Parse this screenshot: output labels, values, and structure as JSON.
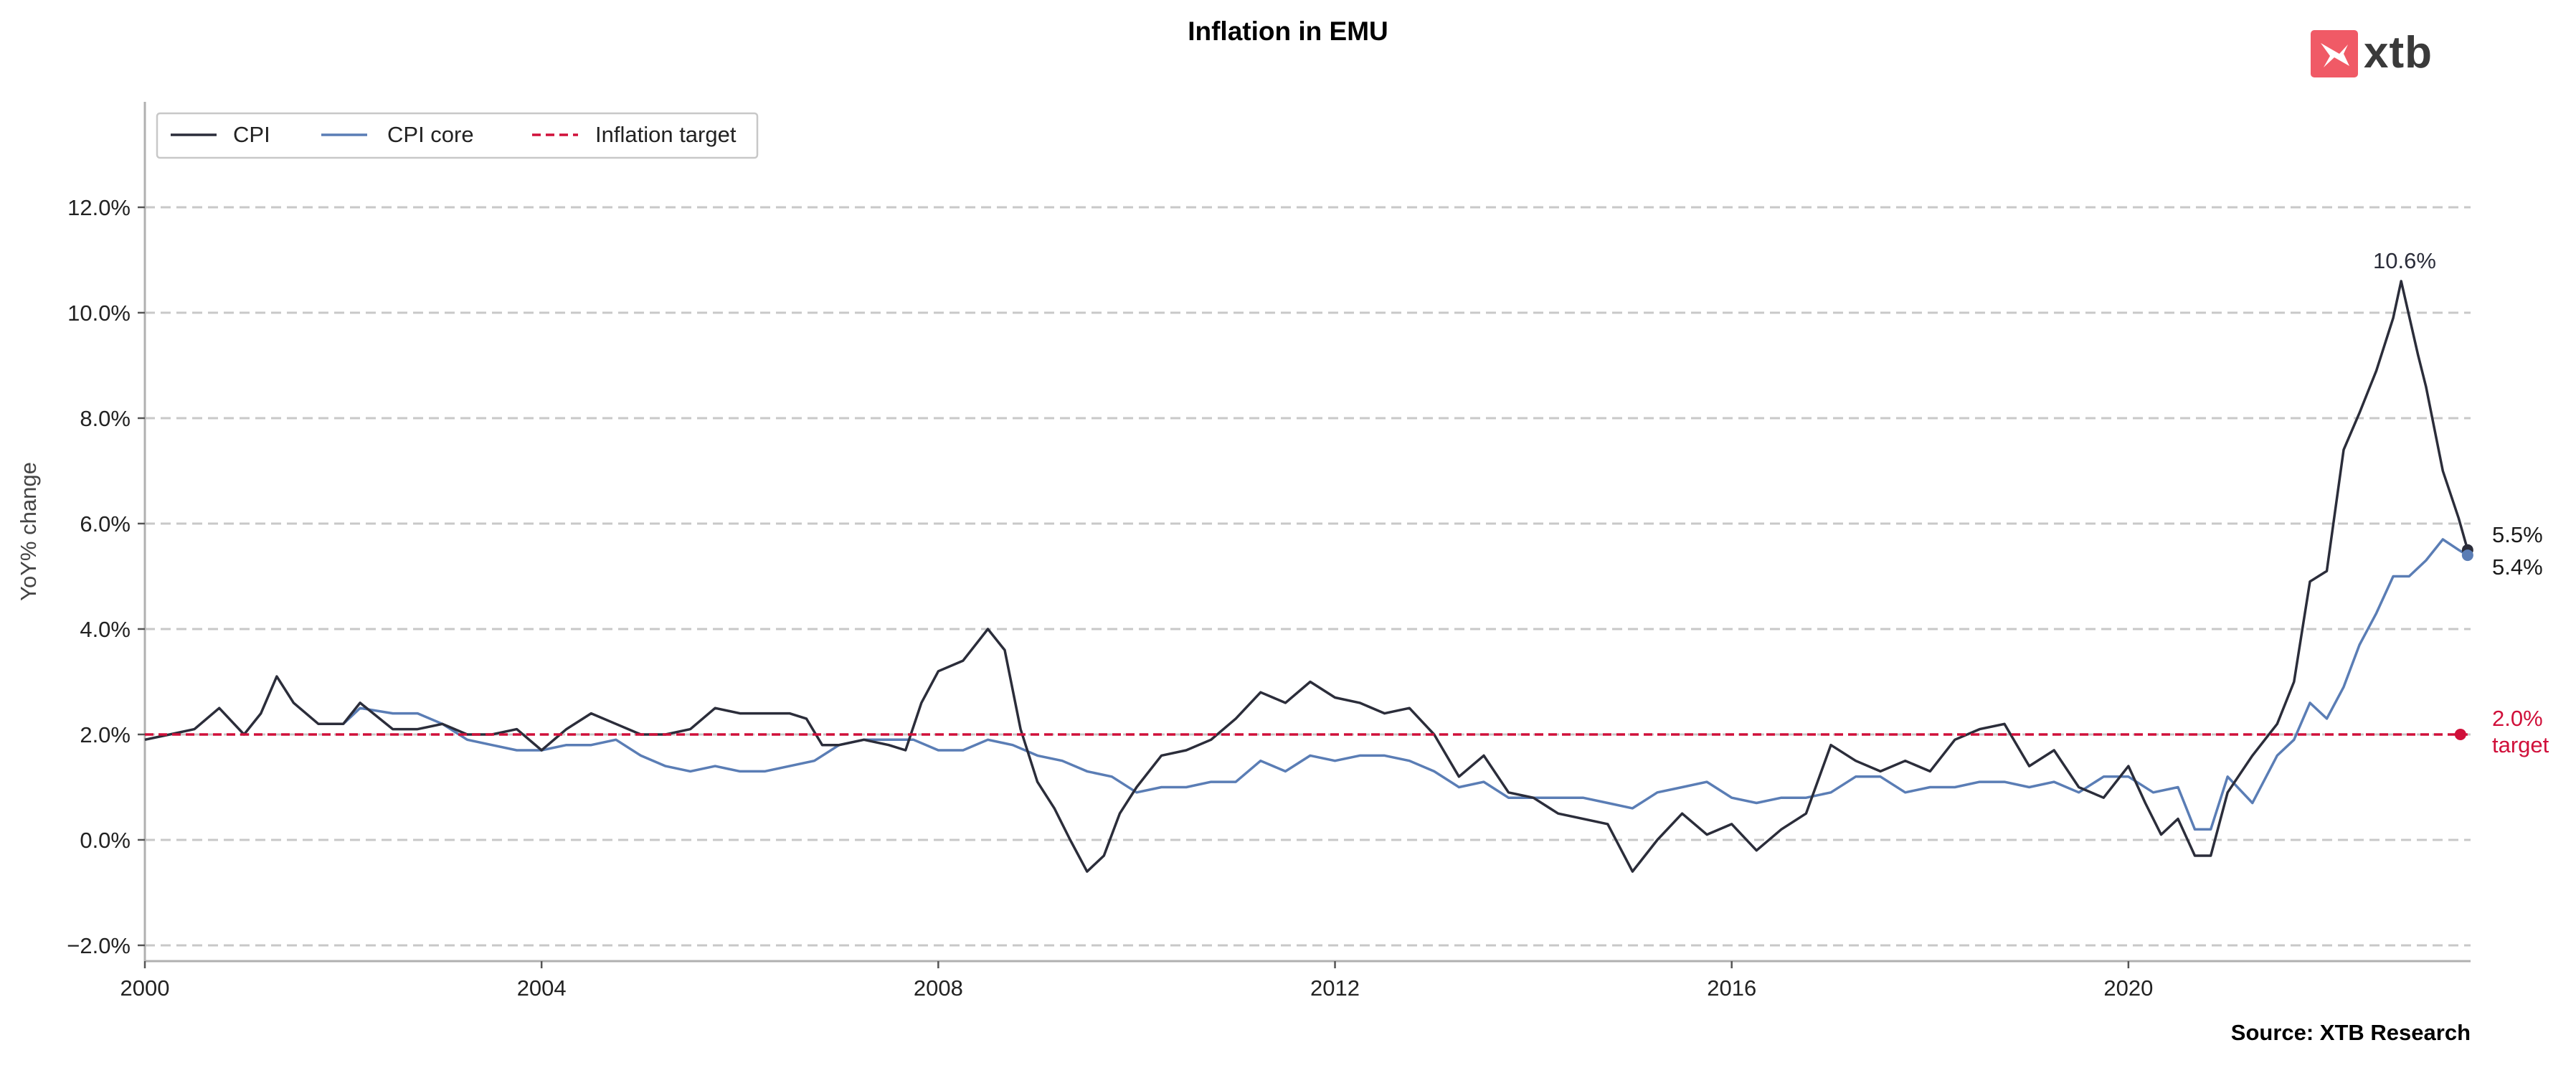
{
  "chart_data": {
    "type": "line",
    "title": "Inflation in EMU",
    "ylabel": "YoY% change",
    "xlabel": "",
    "source": "Source: XTB Research",
    "logo_text": "xtb",
    "ylim": [
      -2.3,
      14
    ],
    "xlim": [
      2000,
      2023.45
    ],
    "y_ticks": [
      -2,
      0,
      2,
      4,
      6,
      8,
      10,
      12
    ],
    "y_tick_labels": [
      "−2.0%",
      "0.0%",
      "2.0%",
      "4.0%",
      "6.0%",
      "8.0%",
      "10.0%",
      "12.0%"
    ],
    "x_ticks": [
      2000,
      2004,
      2008,
      2012,
      2016,
      2020
    ],
    "x_tick_labels": [
      "2000",
      "2004",
      "2008",
      "2012",
      "2016",
      "2020"
    ],
    "grid": "horizontal dashed",
    "legend_position": "top-left",
    "legend": [
      "CPI",
      "CPI core",
      "Inflation target"
    ],
    "peak_label": "10.6%",
    "end_labels": {
      "cpi": "5.5%",
      "core": "5.4%",
      "target_value": "2.0%",
      "target_word": "target"
    },
    "series": [
      {
        "name": "CPI",
        "color": "#2b2d3a",
        "points": [
          [
            2000.0,
            1.9
          ],
          [
            2000.25,
            2.0
          ],
          [
            2000.5,
            2.1
          ],
          [
            2000.75,
            2.5
          ],
          [
            2001.0,
            2.0
          ],
          [
            2001.17,
            2.4
          ],
          [
            2001.33,
            3.1
          ],
          [
            2001.5,
            2.6
          ],
          [
            2001.75,
            2.2
          ],
          [
            2002.0,
            2.2
          ],
          [
            2002.17,
            2.6
          ],
          [
            2002.5,
            2.1
          ],
          [
            2002.75,
            2.1
          ],
          [
            2003.0,
            2.2
          ],
          [
            2003.25,
            2.0
          ],
          [
            2003.5,
            2.0
          ],
          [
            2003.75,
            2.1
          ],
          [
            2004.0,
            1.7
          ],
          [
            2004.25,
            2.1
          ],
          [
            2004.5,
            2.4
          ],
          [
            2004.75,
            2.2
          ],
          [
            2005.0,
            2.0
          ],
          [
            2005.25,
            2.0
          ],
          [
            2005.5,
            2.1
          ],
          [
            2005.75,
            2.5
          ],
          [
            2006.0,
            2.4
          ],
          [
            2006.25,
            2.4
          ],
          [
            2006.5,
            2.4
          ],
          [
            2006.67,
            2.3
          ],
          [
            2006.83,
            1.8
          ],
          [
            2007.0,
            1.8
          ],
          [
            2007.25,
            1.9
          ],
          [
            2007.5,
            1.8
          ],
          [
            2007.67,
            1.7
          ],
          [
            2007.83,
            2.6
          ],
          [
            2008.0,
            3.2
          ],
          [
            2008.25,
            3.4
          ],
          [
            2008.5,
            4.0
          ],
          [
            2008.67,
            3.6
          ],
          [
            2008.83,
            2.1
          ],
          [
            2009.0,
            1.1
          ],
          [
            2009.17,
            0.6
          ],
          [
            2009.33,
            0.0
          ],
          [
            2009.5,
            -0.6
          ],
          [
            2009.67,
            -0.3
          ],
          [
            2009.83,
            0.5
          ],
          [
            2010.0,
            1.0
          ],
          [
            2010.25,
            1.6
          ],
          [
            2010.5,
            1.7
          ],
          [
            2010.75,
            1.9
          ],
          [
            2011.0,
            2.3
          ],
          [
            2011.25,
            2.8
          ],
          [
            2011.5,
            2.6
          ],
          [
            2011.75,
            3.0
          ],
          [
            2012.0,
            2.7
          ],
          [
            2012.25,
            2.6
          ],
          [
            2012.5,
            2.4
          ],
          [
            2012.75,
            2.5
          ],
          [
            2013.0,
            2.0
          ],
          [
            2013.25,
            1.2
          ],
          [
            2013.5,
            1.6
          ],
          [
            2013.75,
            0.9
          ],
          [
            2014.0,
            0.8
          ],
          [
            2014.25,
            0.5
          ],
          [
            2014.5,
            0.4
          ],
          [
            2014.75,
            0.3
          ],
          [
            2015.0,
            -0.6
          ],
          [
            2015.25,
            0.0
          ],
          [
            2015.5,
            0.5
          ],
          [
            2015.75,
            0.1
          ],
          [
            2016.0,
            0.3
          ],
          [
            2016.25,
            -0.2
          ],
          [
            2016.5,
            0.2
          ],
          [
            2016.75,
            0.5
          ],
          [
            2017.0,
            1.8
          ],
          [
            2017.25,
            1.5
          ],
          [
            2017.5,
            1.3
          ],
          [
            2017.75,
            1.5
          ],
          [
            2018.0,
            1.3
          ],
          [
            2018.25,
            1.9
          ],
          [
            2018.5,
            2.1
          ],
          [
            2018.75,
            2.2
          ],
          [
            2019.0,
            1.4
          ],
          [
            2019.25,
            1.7
          ],
          [
            2019.5,
            1.0
          ],
          [
            2019.75,
            0.8
          ],
          [
            2020.0,
            1.4
          ],
          [
            2020.17,
            0.7
          ],
          [
            2020.33,
            0.1
          ],
          [
            2020.5,
            0.4
          ],
          [
            2020.67,
            -0.3
          ],
          [
            2020.83,
            -0.3
          ],
          [
            2021.0,
            0.9
          ],
          [
            2021.25,
            1.6
          ],
          [
            2021.5,
            2.2
          ],
          [
            2021.67,
            3.0
          ],
          [
            2021.83,
            4.9
          ],
          [
            2022.0,
            5.1
          ],
          [
            2022.17,
            7.4
          ],
          [
            2022.33,
            8.1
          ],
          [
            2022.5,
            8.9
          ],
          [
            2022.67,
            9.9
          ],
          [
            2022.75,
            10.6
          ],
          [
            2022.92,
            9.2
          ],
          [
            2023.0,
            8.6
          ],
          [
            2023.17,
            7.0
          ],
          [
            2023.33,
            6.1
          ],
          [
            2023.42,
            5.5
          ]
        ]
      },
      {
        "name": "CPI core",
        "color": "#5a7db5",
        "points": [
          [
            2002.0,
            2.2
          ],
          [
            2002.17,
            2.5
          ],
          [
            2002.5,
            2.4
          ],
          [
            2002.75,
            2.4
          ],
          [
            2003.0,
            2.2
          ],
          [
            2003.25,
            1.9
          ],
          [
            2003.5,
            1.8
          ],
          [
            2003.75,
            1.7
          ],
          [
            2004.0,
            1.7
          ],
          [
            2004.25,
            1.8
          ],
          [
            2004.5,
            1.8
          ],
          [
            2004.75,
            1.9
          ],
          [
            2005.0,
            1.6
          ],
          [
            2005.25,
            1.4
          ],
          [
            2005.5,
            1.3
          ],
          [
            2005.75,
            1.4
          ],
          [
            2006.0,
            1.3
          ],
          [
            2006.25,
            1.3
          ],
          [
            2006.5,
            1.4
          ],
          [
            2006.75,
            1.5
          ],
          [
            2007.0,
            1.8
          ],
          [
            2007.25,
            1.9
          ],
          [
            2007.5,
            1.9
          ],
          [
            2007.75,
            1.9
          ],
          [
            2008.0,
            1.7
          ],
          [
            2008.25,
            1.7
          ],
          [
            2008.5,
            1.9
          ],
          [
            2008.75,
            1.8
          ],
          [
            2009.0,
            1.6
          ],
          [
            2009.25,
            1.5
          ],
          [
            2009.5,
            1.3
          ],
          [
            2009.75,
            1.2
          ],
          [
            2010.0,
            0.9
          ],
          [
            2010.25,
            1.0
          ],
          [
            2010.5,
            1.0
          ],
          [
            2010.75,
            1.1
          ],
          [
            2011.0,
            1.1
          ],
          [
            2011.25,
            1.5
          ],
          [
            2011.5,
            1.3
          ],
          [
            2011.75,
            1.6
          ],
          [
            2012.0,
            1.5
          ],
          [
            2012.25,
            1.6
          ],
          [
            2012.5,
            1.6
          ],
          [
            2012.75,
            1.5
          ],
          [
            2013.0,
            1.3
          ],
          [
            2013.25,
            1.0
          ],
          [
            2013.5,
            1.1
          ],
          [
            2013.75,
            0.8
          ],
          [
            2014.0,
            0.8
          ],
          [
            2014.25,
            0.8
          ],
          [
            2014.5,
            0.8
          ],
          [
            2014.75,
            0.7
          ],
          [
            2015.0,
            0.6
          ],
          [
            2015.25,
            0.9
          ],
          [
            2015.5,
            1.0
          ],
          [
            2015.75,
            1.1
          ],
          [
            2016.0,
            0.8
          ],
          [
            2016.25,
            0.7
          ],
          [
            2016.5,
            0.8
          ],
          [
            2016.75,
            0.8
          ],
          [
            2017.0,
            0.9
          ],
          [
            2017.25,
            1.2
          ],
          [
            2017.5,
            1.2
          ],
          [
            2017.75,
            0.9
          ],
          [
            2018.0,
            1.0
          ],
          [
            2018.25,
            1.0
          ],
          [
            2018.5,
            1.1
          ],
          [
            2018.75,
            1.1
          ],
          [
            2019.0,
            1.0
          ],
          [
            2019.25,
            1.1
          ],
          [
            2019.5,
            0.9
          ],
          [
            2019.75,
            1.2
          ],
          [
            2020.0,
            1.2
          ],
          [
            2020.25,
            0.9
          ],
          [
            2020.5,
            1.0
          ],
          [
            2020.67,
            0.2
          ],
          [
            2020.83,
            0.2
          ],
          [
            2021.0,
            1.2
          ],
          [
            2021.25,
            0.7
          ],
          [
            2021.5,
            1.6
          ],
          [
            2021.67,
            1.9
          ],
          [
            2021.83,
            2.6
          ],
          [
            2022.0,
            2.3
          ],
          [
            2022.17,
            2.9
          ],
          [
            2022.33,
            3.7
          ],
          [
            2022.5,
            4.3
          ],
          [
            2022.67,
            5.0
          ],
          [
            2022.83,
            5.0
          ],
          [
            2023.0,
            5.3
          ],
          [
            2023.17,
            5.7
          ],
          [
            2023.33,
            5.5
          ],
          [
            2023.42,
            5.4
          ]
        ]
      },
      {
        "name": "Inflation target",
        "color": "#d0103a",
        "points": [
          [
            2000.0,
            2.0
          ],
          [
            2023.42,
            2.0
          ]
        ]
      }
    ]
  }
}
